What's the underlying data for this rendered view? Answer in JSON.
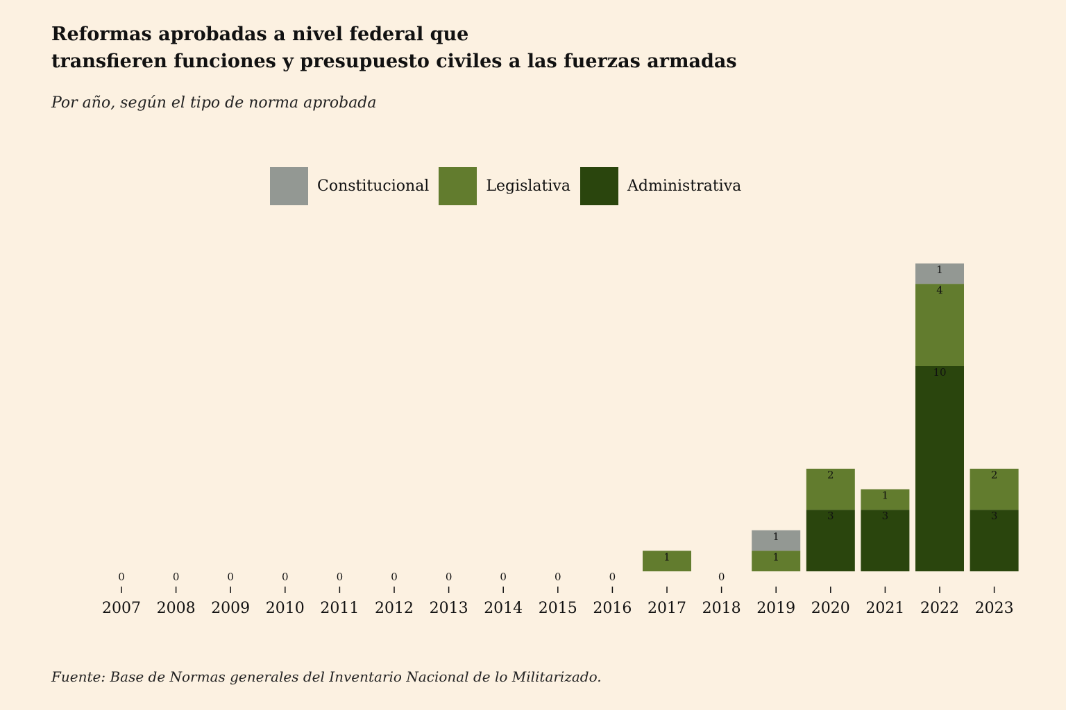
{
  "title_lines": [
    "Reformas aprobadas a nivel federal que",
    "transfieren funciones y presupuesto civiles a las fuerzas armadas"
  ],
  "subtitle": "Por año, según el tipo de norma aprobada",
  "source": "Fuente: Base de Normas generales del Inventario Nacional de lo Militarizado.",
  "colors": {
    "background": "#fcf1e1",
    "constitucional": "#939893",
    "legislativa": "#627c2e",
    "administrativa": "#2a450d"
  },
  "chart_data": {
    "type": "bar",
    "stacked": true,
    "categories": [
      "2007",
      "2008",
      "2009",
      "2010",
      "2011",
      "2012",
      "2013",
      "2014",
      "2015",
      "2016",
      "2017",
      "2018",
      "2019",
      "2020",
      "2021",
      "2022",
      "2023"
    ],
    "series": [
      {
        "name": "Administrativa",
        "color": "#2a450d",
        "values": [
          0,
          0,
          0,
          0,
          0,
          0,
          0,
          0,
          0,
          0,
          0,
          0,
          0,
          3,
          3,
          10,
          3
        ]
      },
      {
        "name": "Legislativa",
        "color": "#627c2e",
        "values": [
          0,
          0,
          0,
          0,
          0,
          0,
          0,
          0,
          0,
          0,
          1,
          0,
          1,
          2,
          1,
          4,
          2
        ]
      },
      {
        "name": "Constitucional",
        "color": "#939893",
        "values": [
          0,
          0,
          0,
          0,
          0,
          0,
          0,
          0,
          0,
          0,
          0,
          0,
          1,
          0,
          0,
          1,
          0
        ]
      }
    ],
    "legend_order": [
      "Constitucional",
      "Legislativa",
      "Administrativa"
    ],
    "legend": "top-center",
    "ylim": [
      0,
      16
    ],
    "grid": false
  }
}
